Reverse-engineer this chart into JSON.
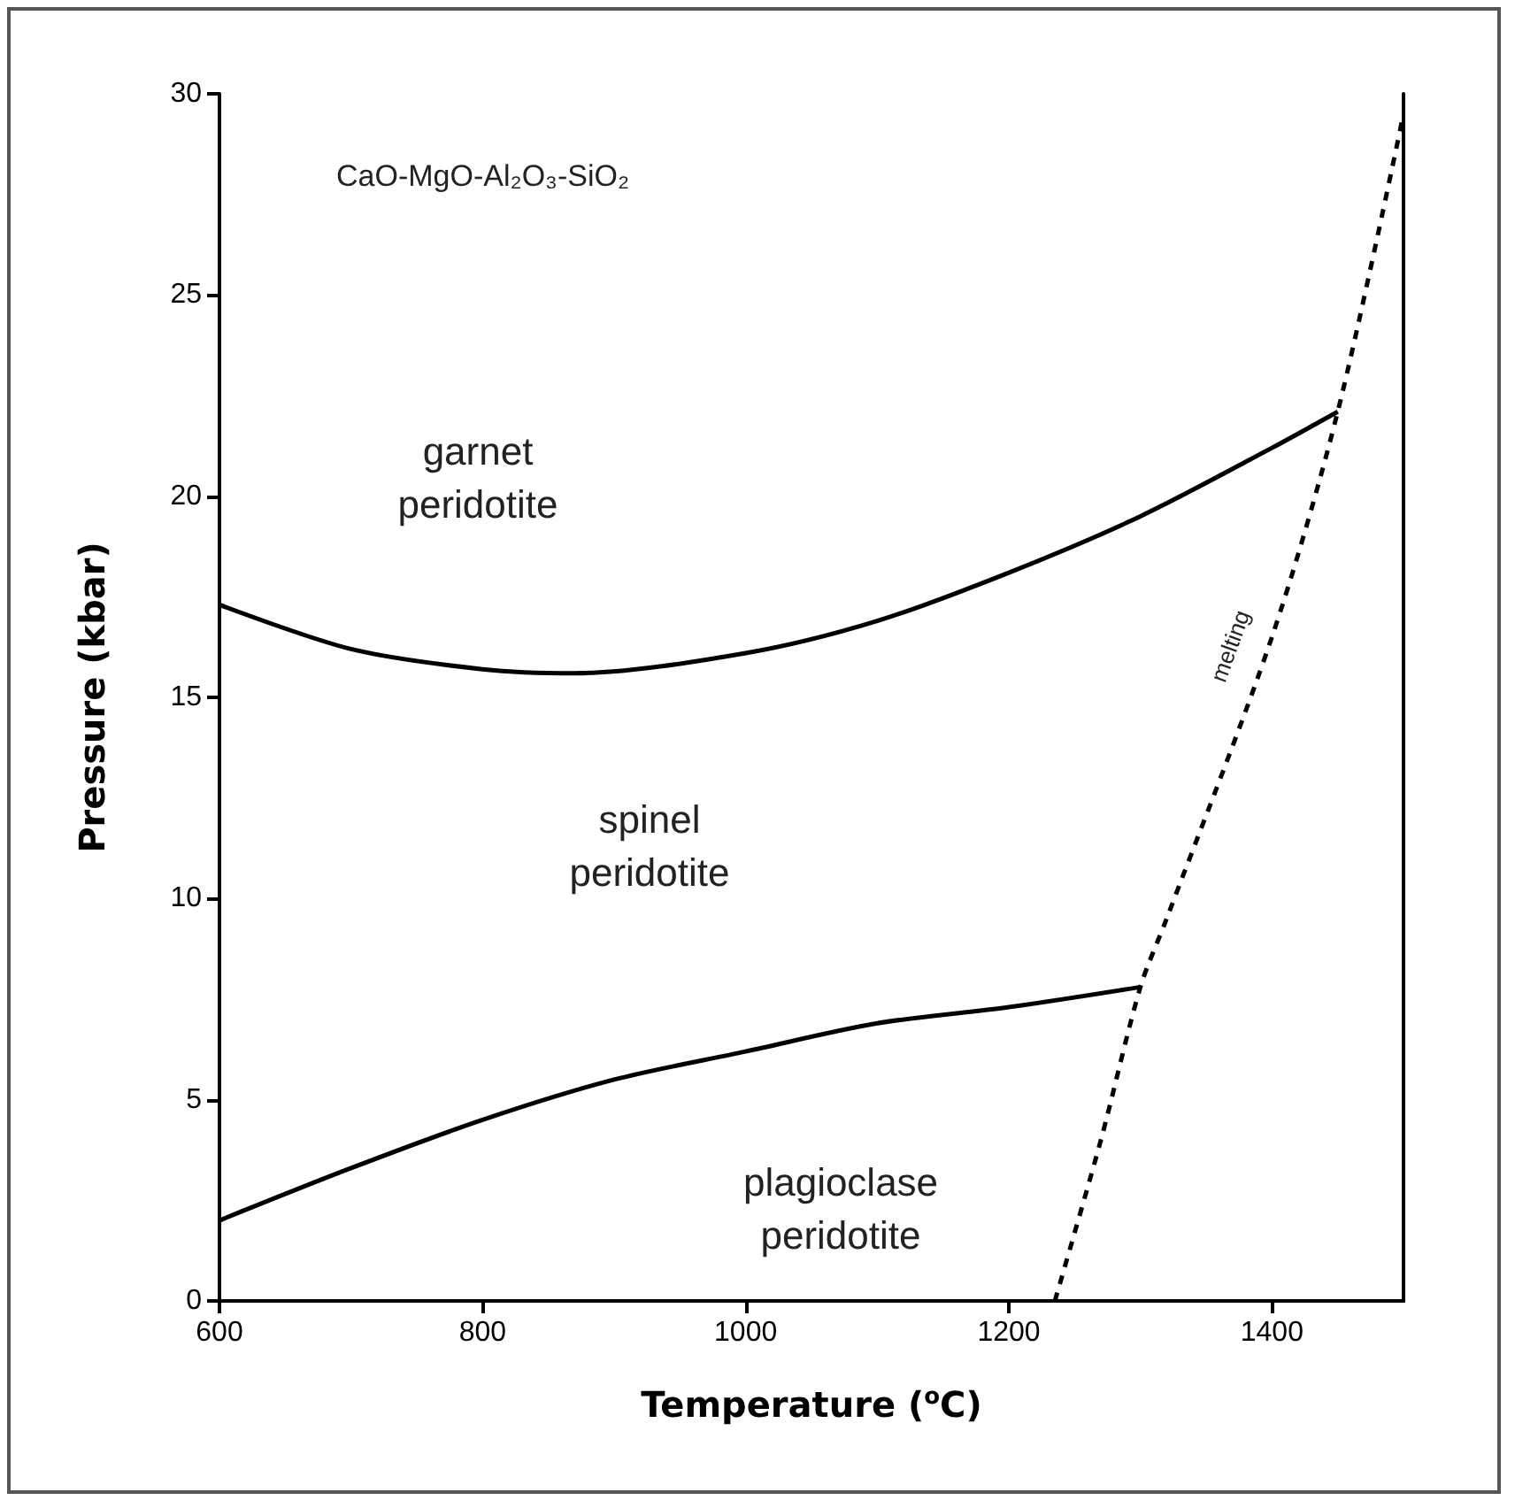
{
  "chart_data": {
    "type": "line",
    "title": "CaO-MgO-Al₂O₃-SiO₂",
    "xlabel": "Temperature ($^{o}$C)",
    "ylabel": "Pressure (kbar)",
    "xlim": [
      600,
      1500
    ],
    "xticks": [
      600,
      800,
      1000,
      1200,
      1400
    ],
    "ylim": [
      0,
      30
    ],
    "yticks": [
      0,
      5,
      10,
      15,
      20,
      25,
      30
    ],
    "grid": false,
    "marker": "none",
    "series": [
      {
        "color": "#000000",
        "line_style": "solid",
        "x": [
          600,
          700,
          800,
          870,
          1000,
          1100,
          1200,
          1300,
          1400,
          1450
        ],
        "values": [
          17.3,
          16.2,
          15.7,
          15.6,
          16.1,
          16.9,
          18.1,
          19.5,
          21.2,
          22.1
        ]
      },
      {
        "color": "#000000",
        "line_style": "solid",
        "x": [
          600,
          700,
          800,
          900,
          1000,
          1100,
          1200,
          1300
        ],
        "values": [
          2.0,
          3.3,
          4.5,
          5.5,
          6.2,
          6.9,
          7.3,
          7.8
        ]
      },
      {
        "color": "#000000",
        "line_style": "dashed",
        "x": [
          1235,
          1270,
          1300,
          1320,
          1400,
          1450,
          1500
        ],
        "values": [
          0,
          4,
          7.8,
          9.5,
          16.5,
          22.1,
          29.5
        ]
      }
    ],
    "annotations": [
      "garnet\nperidotite",
      "spinel\nperidotite",
      "plagioclase\nperidotite",
      "melting"
    ]
  }
}
